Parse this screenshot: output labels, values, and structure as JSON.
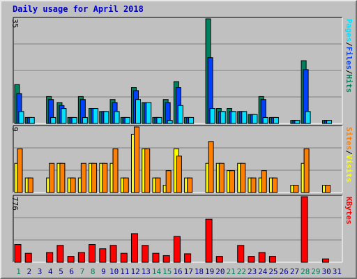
{
  "title": "Daily usage for April 2018",
  "colors": {
    "pages": "#00805c",
    "files": "#0040ff",
    "hits": "#00e0ff",
    "sites": "#ff8000",
    "visits": "#ffff00",
    "kbytes": "#ff0000",
    "plot_bg": "#c0c0c0",
    "grid": "#808080",
    "weekend_label": "#00805c",
    "weekday_label": "#000080"
  },
  "chart_data": {
    "type": "bar",
    "x": [
      "1",
      "2",
      "3",
      "4",
      "5",
      "6",
      "7",
      "8",
      "9",
      "10",
      "11",
      "12",
      "13",
      "14",
      "15",
      "16",
      "17",
      "18",
      "19",
      "20",
      "21",
      "22",
      "23",
      "24",
      "25",
      "26",
      "27",
      "28",
      "29",
      "30",
      "31"
    ],
    "weekend_days": [
      "1",
      "7",
      "8",
      "14",
      "15",
      "21",
      "22",
      "28",
      "29"
    ],
    "panels": [
      {
        "name": "hits-files-pages",
        "ymax_label": "35",
        "ylim": [
          0,
          35
        ],
        "legend": [
          {
            "text": "Pages",
            "color": "#00e0ff"
          },
          {
            "text": "/",
            "color": "#000000"
          },
          {
            "text": "Files",
            "color": "#0040ff"
          },
          {
            "text": "/",
            "color": "#000000"
          },
          {
            "text": "Hits",
            "color": "#00805c"
          }
        ],
        "series": [
          {
            "name": "Hits",
            "color": "#00805c",
            "values": [
              13,
              2,
              0,
              9,
              7,
              2,
              9,
              5,
              4,
              8,
              2,
              12,
              7,
              2,
              8,
              14,
              2,
              0,
              35,
              5,
              5,
              4,
              3,
              9,
              2,
              0,
              1,
              21,
              0,
              1,
              0
            ]
          },
          {
            "name": "Files",
            "color": "#0040ff",
            "values": [
              10,
              2,
              0,
              8,
              6,
              2,
              8,
              5,
              4,
              7,
              2,
              11,
              7,
              2,
              7,
              12,
              2,
              0,
              22,
              4,
              4,
              4,
              3,
              8,
              2,
              0,
              1,
              18,
              0,
              1,
              0
            ]
          },
          {
            "name": "Pages",
            "color": "#00e0ff",
            "values": [
              4,
              2,
              0,
              2,
              5,
              2,
              2,
              5,
              4,
              4,
              2,
              8,
              7,
              2,
              1,
              6,
              2,
              0,
              5,
              4,
              4,
              4,
              3,
              2,
              2,
              0,
              1,
              4,
              0,
              1,
              0
            ]
          }
        ]
      },
      {
        "name": "visits-sites",
        "ymax_label": "9",
        "ylim": [
          0,
          9
        ],
        "legend": [
          {
            "text": "Sites",
            "color": "#ff8000"
          },
          {
            "text": "/",
            "color": "#000000"
          },
          {
            "text": "Visits",
            "color": "#ffff00"
          }
        ],
        "series": [
          {
            "name": "Visits",
            "color": "#ffff00",
            "values": [
              4,
              2,
              0,
              2,
              4,
              2,
              2,
              4,
              4,
              4,
              2,
              8,
              6,
              2,
              1,
              6,
              2,
              0,
              4,
              4,
              3,
              4,
              2,
              2,
              2,
              0,
              1,
              4,
              0,
              1,
              0
            ]
          },
          {
            "name": "Sites",
            "color": "#ff8000",
            "values": [
              6,
              2,
              0,
              4,
              4,
              2,
              4,
              4,
              4,
              6,
              2,
              9,
              6,
              2,
              3,
              5,
              2,
              0,
              7,
              4,
              3,
              4,
              2,
              3,
              2,
              0,
              1,
              6,
              0,
              1,
              0
            ]
          }
        ]
      },
      {
        "name": "kbytes",
        "ymax_label": "776",
        "ylim": [
          0,
          776
        ],
        "legend": [
          {
            "text": "KBytes",
            "color": "#ff0000"
          }
        ],
        "series": [
          {
            "name": "KBytes",
            "color": "#ff0000",
            "values": [
              210,
              106,
              0,
              116,
              200,
              69,
              116,
              210,
              160,
              200,
              106,
              339,
              200,
              106,
              79,
              306,
              100,
              0,
              510,
              69,
              0,
              200,
              69,
              116,
              69,
              0,
              0,
              776,
              0,
              40,
              0
            ]
          }
        ]
      }
    ]
  }
}
